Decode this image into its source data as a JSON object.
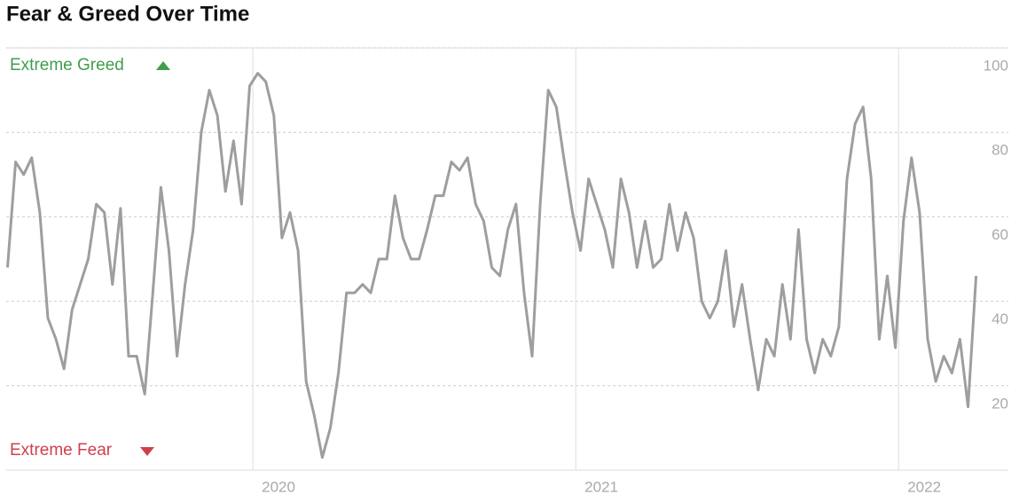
{
  "chart_data": {
    "type": "line",
    "title": "Fear & Greed Over Time",
    "annotations": [
      "Extreme Greed",
      "Extreme Fear"
    ],
    "x": [
      2019.24,
      2019.265,
      2019.29,
      2019.315,
      2019.34,
      2019.365,
      2019.39,
      2019.415,
      2019.44,
      2019.465,
      2019.49,
      2019.515,
      2019.54,
      2019.565,
      2019.59,
      2019.615,
      2019.64,
      2019.665,
      2019.69,
      2019.715,
      2019.74,
      2019.765,
      2019.79,
      2019.815,
      2019.84,
      2019.865,
      2019.89,
      2019.915,
      2019.94,
      2019.965,
      2019.99,
      2020.015,
      2020.04,
      2020.065,
      2020.09,
      2020.115,
      2020.14,
      2020.165,
      2020.19,
      2020.215,
      2020.24,
      2020.265,
      2020.29,
      2020.315,
      2020.34,
      2020.365,
      2020.39,
      2020.415,
      2020.44,
      2020.465,
      2020.49,
      2020.515,
      2020.54,
      2020.565,
      2020.59,
      2020.615,
      2020.64,
      2020.665,
      2020.69,
      2020.715,
      2020.74,
      2020.765,
      2020.79,
      2020.815,
      2020.84,
      2020.865,
      2020.89,
      2020.915,
      2020.94,
      2020.965,
      2020.99,
      2021.015,
      2021.04,
      2021.065,
      2021.09,
      2021.115,
      2021.14,
      2021.165,
      2021.19,
      2021.215,
      2021.24,
      2021.265,
      2021.29,
      2021.315,
      2021.34,
      2021.365,
      2021.39,
      2021.415,
      2021.44,
      2021.465,
      2021.49,
      2021.515,
      2021.54,
      2021.565,
      2021.59,
      2021.615,
      2021.64,
      2021.665,
      2021.69,
      2021.715,
      2021.74,
      2021.765,
      2021.79,
      2021.815,
      2021.84,
      2021.865,
      2021.89,
      2021.915,
      2021.94,
      2021.965,
      2021.99,
      2022.015,
      2022.04,
      2022.065,
      2022.09,
      2022.115,
      2022.14,
      2022.165,
      2022.19,
      2022.215,
      2022.24
    ],
    "series": [
      {
        "color": "#9e9e9e",
        "values": [
          48,
          73,
          70,
          74,
          61,
          36,
          31,
          24,
          38,
          44,
          50,
          63,
          61,
          44,
          62,
          27,
          27,
          18,
          42,
          67,
          52,
          27,
          44,
          57,
          80,
          90,
          84,
          66,
          78,
          63,
          91,
          94,
          92,
          84,
          55,
          61,
          52,
          21,
          13,
          3,
          10,
          23,
          42,
          42,
          44,
          42,
          50,
          50,
          65,
          55,
          50,
          50,
          57,
          65,
          65,
          73,
          71,
          74,
          63,
          59,
          48,
          46,
          57,
          63,
          42,
          27,
          63,
          90,
          86,
          73,
          61,
          52,
          69,
          63,
          57,
          48,
          69,
          61,
          48,
          59,
          48,
          50,
          63,
          52,
          61,
          55,
          40,
          36,
          40,
          52,
          34,
          44,
          31,
          19,
          31,
          27,
          44,
          31,
          57,
          31,
          23,
          31,
          27,
          34,
          69,
          82,
          86,
          69,
          31,
          46,
          29,
          59,
          74,
          61,
          31,
          21,
          27,
          23,
          31,
          15,
          46
        ]
      }
    ],
    "xlim": [
      2019.236,
      2022.34
    ],
    "xticks": [
      2020,
      2021,
      2022
    ],
    "ylim": [
      0,
      100
    ],
    "yticks": [
      20,
      40,
      60,
      80,
      100
    ],
    "grid": true
  }
}
